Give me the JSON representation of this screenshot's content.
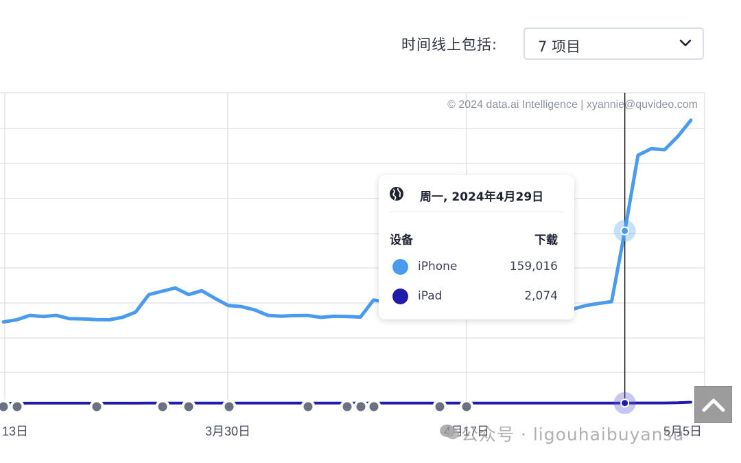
{
  "filter": {
    "label": "时间线上包括:",
    "value": "7 项目"
  },
  "copyright": "© 2024 data.ai Intelligence | xyannie@quvideo.com",
  "tooltip": {
    "date": "周一, 2024年4月29日",
    "col_device": "设备",
    "col_downloads": "下载",
    "rows": [
      {
        "name": "iPhone",
        "value": "159,016",
        "color": "#4a9bf0"
      },
      {
        "name": "iPad",
        "value": "2,074",
        "color": "#1f1cab"
      }
    ]
  },
  "watermark": "公众号 · ligouhaibuyansu",
  "chart_data": {
    "type": "line",
    "x_tick_labels": [
      "13日",
      "3月30日",
      "4月17日",
      "5月5日"
    ],
    "hovered_date": "周一, 2024年4月29日",
    "grid": true,
    "series": [
      {
        "name": "iPhone",
        "color": "#4a9bf0",
        "values": [
          76000,
          78000,
          82000,
          81000,
          82000,
          79000,
          78800,
          78200,
          78000,
          80200,
          85000,
          101000,
          104000,
          107000,
          101000,
          104500,
          97500,
          91000,
          90000,
          87000,
          82000,
          81300,
          81800,
          81900,
          80200,
          81200,
          81000,
          80400,
          96000,
          94000,
          95000,
          91000,
          90000,
          85000,
          85500,
          84500,
          86000,
          85300,
          85600,
          93000,
          89300,
          88300,
          87900,
          87500,
          90800,
          92800,
          94500,
          159016,
          228000,
          234000,
          233000,
          245000,
          260000
        ]
      },
      {
        "name": "iPad",
        "color": "#1f1cab",
        "values": [
          1900,
          1900,
          1950,
          1950,
          1950,
          1950,
          1950,
          1950,
          1950,
          1950,
          1950,
          2000,
          2000,
          2000,
          2000,
          2000,
          2000,
          2000,
          2000,
          2000,
          2000,
          2000,
          2000,
          2000,
          2000,
          2000,
          2000,
          2000,
          2000,
          2000,
          2000,
          2000,
          2000,
          2000,
          2000,
          2000,
          2000,
          2000,
          2000,
          2000,
          2000,
          2000,
          2000,
          2000,
          2000,
          2050,
          2050,
          2074,
          2100,
          2100,
          2150,
          2300,
          2800
        ]
      }
    ],
    "event_marker_indices": [
      0,
      1,
      7,
      12,
      14,
      17,
      23,
      26,
      27,
      28,
      33,
      35
    ],
    "hover_index": 47
  }
}
